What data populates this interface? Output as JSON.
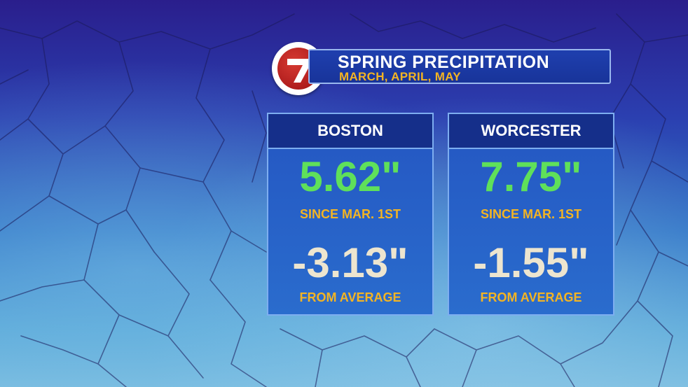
{
  "header": {
    "logo_text": "7",
    "title": "SPRING PRECIPITATION",
    "subtitle": "MARCH, APRIL, MAY"
  },
  "cities": [
    {
      "name": "BOSTON",
      "total": "5.62\"",
      "total_label": "SINCE MAR. 1ST",
      "departure": "-3.13\"",
      "departure_label": "FROM AVERAGE"
    },
    {
      "name": "WORCESTER",
      "total": "7.75\"",
      "total_label": "SINCE MAR. 1ST",
      "departure": "-1.55\"",
      "departure_label": "FROM AVERAGE"
    }
  ],
  "colors": {
    "value_green": "#5fe05a",
    "value_cream": "#ede5cf",
    "label_gold": "#f3b423",
    "panel_blue": "#2456c2",
    "header_navy": "#152f8a",
    "logo_red": "#b01d1d"
  }
}
